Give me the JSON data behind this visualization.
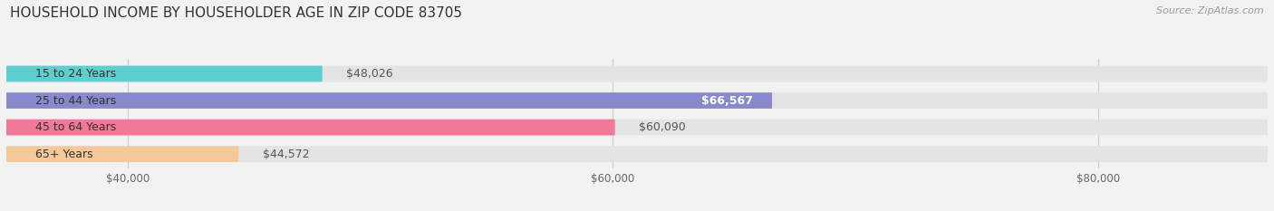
{
  "title": "HOUSEHOLD INCOME BY HOUSEHOLDER AGE IN ZIP CODE 83705",
  "source": "Source: ZipAtlas.com",
  "categories": [
    "15 to 24 Years",
    "25 to 44 Years",
    "45 to 64 Years",
    "65+ Years"
  ],
  "values": [
    48026,
    66567,
    60090,
    44572
  ],
  "bar_colors": [
    "#5ecece",
    "#8888cc",
    "#f07898",
    "#f5c898"
  ],
  "bar_labels": [
    "$48,026",
    "$66,567",
    "$60,090",
    "$44,572"
  ],
  "label_inside": [
    false,
    true,
    false,
    false
  ],
  "x_min": 35000,
  "x_max": 87000,
  "x_ticks": [
    40000,
    60000,
    80000
  ],
  "x_tick_labels": [
    "$40,000",
    "$60,000",
    "$80,000"
  ],
  "background_color": "#f2f2f2",
  "bar_background_color": "#e4e4e4",
  "title_fontsize": 11,
  "source_fontsize": 8,
  "label_fontsize": 9,
  "category_fontsize": 9,
  "tick_fontsize": 8.5
}
